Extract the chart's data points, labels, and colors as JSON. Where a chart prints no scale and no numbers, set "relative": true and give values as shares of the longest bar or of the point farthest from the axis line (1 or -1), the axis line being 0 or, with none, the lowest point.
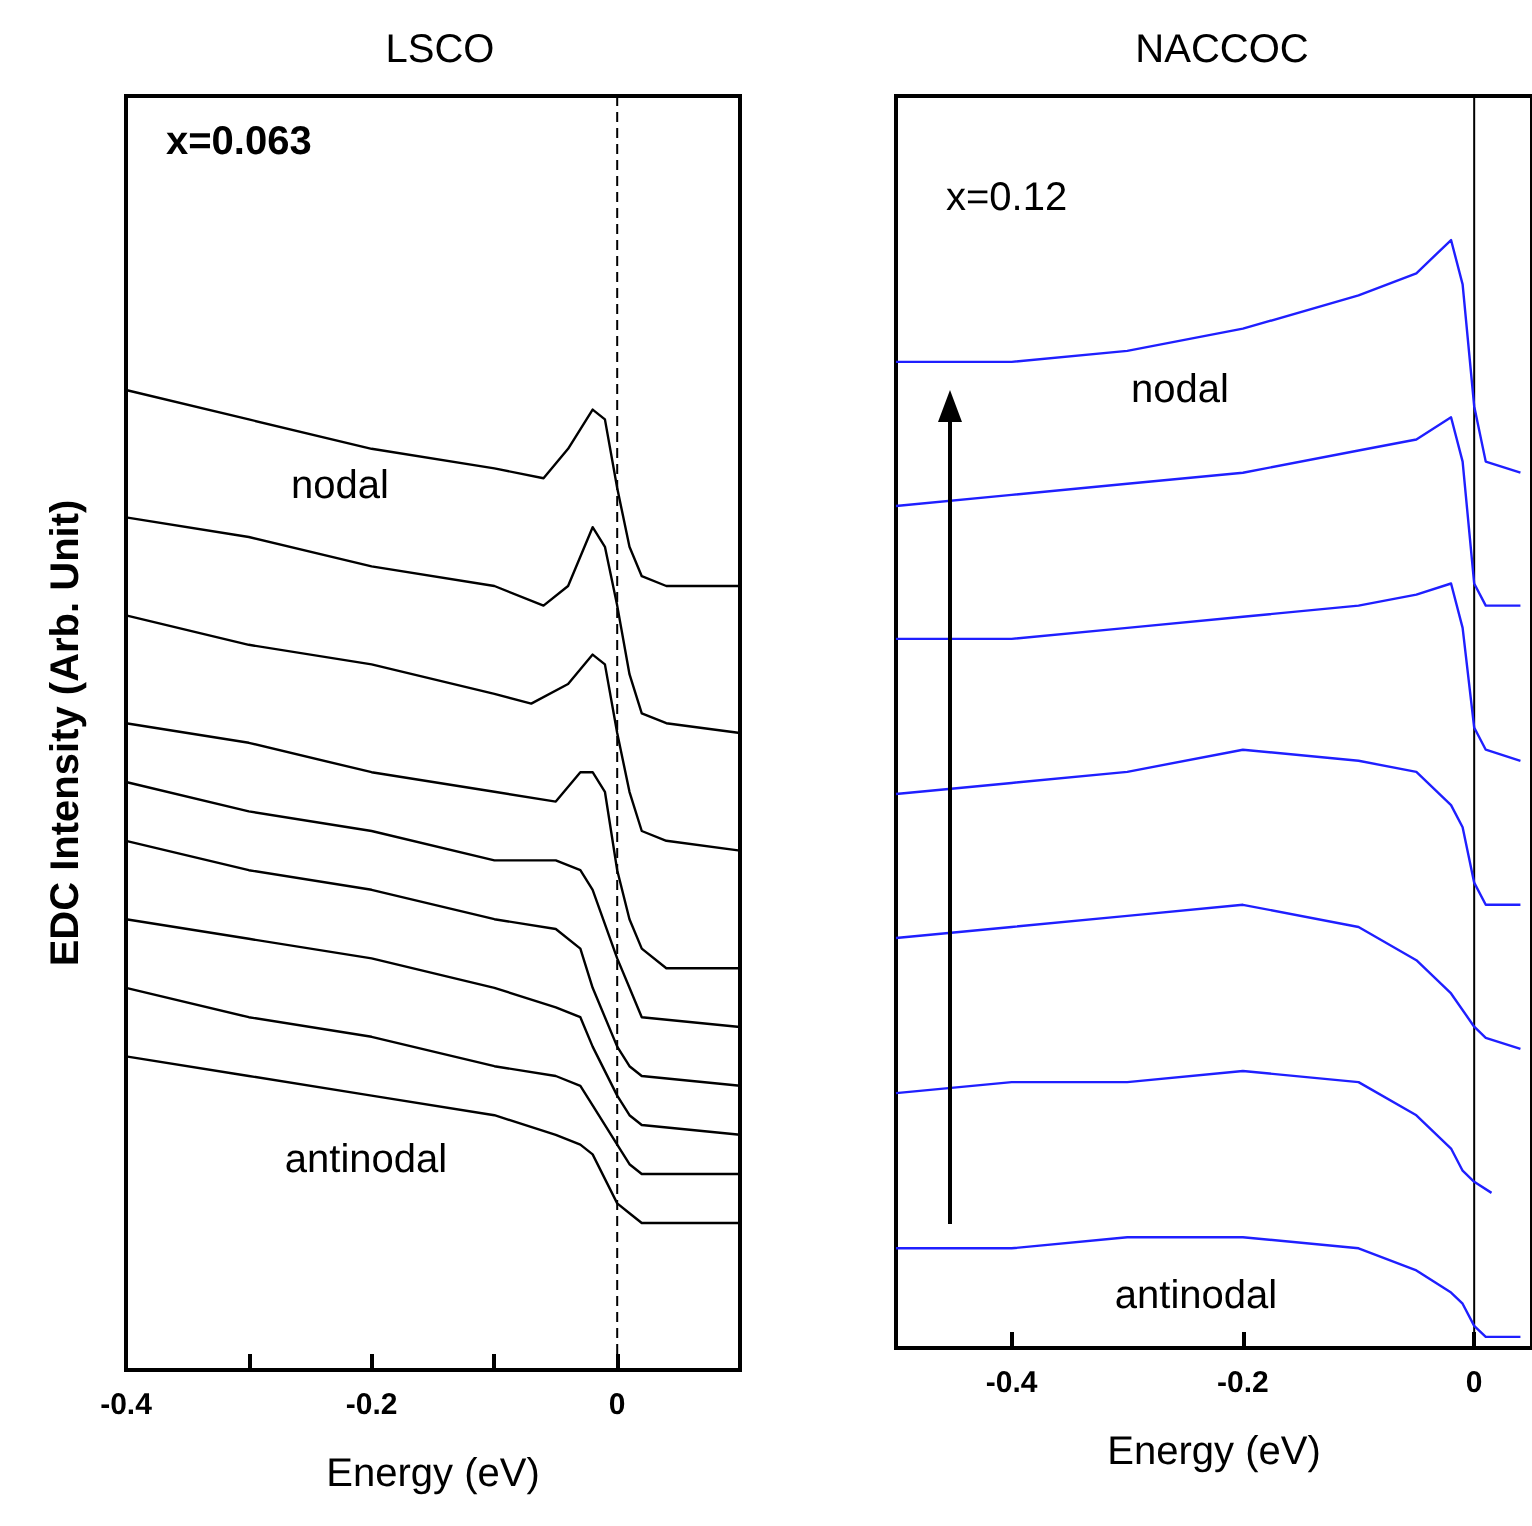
{
  "chart_data": [
    {
      "type": "line",
      "title": "LSCO",
      "xlabel": "Energy (eV)",
      "ylabel": "EDC Intensity (Arb. Unit)",
      "relative": true,
      "tick_labels": "x",
      "marker": "none",
      "line_style": "solid",
      "xlim": [
        -0.4,
        0.1
      ],
      "xticks": [
        -0.4,
        {
          "value": -0.3,
          "label": null
        },
        -0.2,
        {
          "value": -0.1,
          "label": null
        },
        0,
        {
          "value": 0.1,
          "label": null
        }
      ],
      "annotations": [
        "x=0.063",
        "nodal",
        "antinodal"
      ],
      "ref_lines": [
        {
          "axis": "x",
          "value": 0,
          "label": null,
          "color": "#000000",
          "line_style": "dashed"
        }
      ],
      "series": [
        {
          "color": "#000000",
          "x": [
            -0.4,
            -0.3,
            -0.2,
            -0.1,
            -0.06,
            -0.04,
            -0.02,
            -0.01,
            0,
            0.01,
            0.02,
            0.04,
            0.1
          ],
          "values": [
            1.0,
            0.97,
            0.94,
            0.92,
            0.91,
            0.94,
            0.98,
            0.97,
            0.9,
            0.84,
            0.81,
            0.8,
            0.8
          ]
        },
        {
          "color": "#000000",
          "x": [
            -0.4,
            -0.3,
            -0.2,
            -0.1,
            -0.06,
            -0.04,
            -0.02,
            -0.01,
            0,
            0.01,
            0.02,
            0.04,
            0.1
          ],
          "values": [
            0.87,
            0.85,
            0.82,
            0.8,
            0.78,
            0.8,
            0.86,
            0.84,
            0.78,
            0.71,
            0.67,
            0.66,
            0.65
          ]
        },
        {
          "color": "#000000",
          "x": [
            -0.4,
            -0.3,
            -0.2,
            -0.1,
            -0.07,
            -0.04,
            -0.02,
            -0.01,
            0,
            0.01,
            0.02,
            0.04,
            0.1
          ],
          "values": [
            0.77,
            0.74,
            0.72,
            0.69,
            0.68,
            0.7,
            0.73,
            0.72,
            0.65,
            0.59,
            0.55,
            0.54,
            0.53
          ]
        },
        {
          "color": "#000000",
          "x": [
            -0.4,
            -0.3,
            -0.2,
            -0.1,
            -0.05,
            -0.03,
            -0.02,
            -0.01,
            0,
            0.01,
            0.02,
            0.04,
            0.1
          ],
          "values": [
            0.66,
            0.64,
            0.61,
            0.59,
            0.58,
            0.61,
            0.61,
            0.59,
            0.51,
            0.46,
            0.43,
            0.41,
            0.41
          ]
        },
        {
          "color": "#000000",
          "x": [
            -0.4,
            -0.3,
            -0.2,
            -0.1,
            -0.05,
            -0.03,
            -0.02,
            0,
            0.01,
            0.02,
            0.1
          ],
          "values": [
            0.6,
            0.57,
            0.55,
            0.52,
            0.52,
            0.51,
            0.49,
            0.42,
            0.39,
            0.36,
            0.35
          ]
        },
        {
          "color": "#000000",
          "x": [
            -0.4,
            -0.3,
            -0.2,
            -0.1,
            -0.05,
            -0.03,
            -0.02,
            0,
            0.01,
            0.02,
            0.1
          ],
          "values": [
            0.54,
            0.51,
            0.49,
            0.46,
            0.45,
            0.43,
            0.39,
            0.33,
            0.31,
            0.3,
            0.29
          ]
        },
        {
          "color": "#000000",
          "x": [
            -0.4,
            -0.3,
            -0.2,
            -0.1,
            -0.05,
            -0.03,
            -0.02,
            0,
            0.01,
            0.02,
            0.1
          ],
          "values": [
            0.46,
            0.44,
            0.42,
            0.39,
            0.37,
            0.36,
            0.33,
            0.28,
            0.26,
            0.25,
            0.24
          ]
        },
        {
          "color": "#000000",
          "x": [
            -0.4,
            -0.3,
            -0.2,
            -0.1,
            -0.05,
            -0.03,
            -0.02,
            0,
            0.01,
            0.02,
            0.1
          ],
          "values": [
            0.39,
            0.36,
            0.34,
            0.31,
            0.3,
            0.29,
            0.27,
            0.23,
            0.21,
            0.2,
            0.2
          ]
        },
        {
          "color": "#000000",
          "x": [
            -0.4,
            -0.3,
            -0.2,
            -0.1,
            -0.05,
            -0.03,
            -0.02,
            0,
            0.01,
            0.02,
            0.1
          ],
          "values": [
            0.32,
            0.3,
            0.28,
            0.26,
            0.24,
            0.23,
            0.22,
            0.17,
            0.16,
            0.15,
            0.15
          ]
        }
      ]
    },
    {
      "type": "line",
      "title": "NACCOC",
      "xlabel": "Energy (eV)",
      "relative": true,
      "tick_labels": "x",
      "marker": "none",
      "line_style": "solid",
      "xlim": [
        -0.5,
        0.05
      ],
      "xticks": [
        -0.4,
        -0.2,
        0
      ],
      "annotations": [
        "x=0.12",
        "nodal",
        "antinodal"
      ],
      "ref_lines": [
        {
          "axis": "x",
          "value": 0,
          "label": null,
          "color": "#000000",
          "line_style": "solid"
        }
      ],
      "series": [
        {
          "color": "#1f1fff",
          "x": [
            -0.5,
            -0.4,
            -0.3,
            -0.2,
            -0.1,
            -0.05,
            -0.02,
            -0.01,
            0,
            0.01,
            0.04
          ],
          "values": [
            0.89,
            0.89,
            0.9,
            0.92,
            0.95,
            0.97,
            1.0,
            0.96,
            0.85,
            0.8,
            0.79
          ]
        },
        {
          "color": "#1f1fff",
          "x": [
            -0.5,
            -0.4,
            -0.3,
            -0.2,
            -0.1,
            -0.05,
            -0.02,
            -0.01,
            0,
            0.01,
            0.04
          ],
          "values": [
            0.76,
            0.77,
            0.78,
            0.79,
            0.81,
            0.82,
            0.84,
            0.8,
            0.69,
            0.67,
            0.67
          ]
        },
        {
          "color": "#1f1fff",
          "x": [
            -0.5,
            -0.4,
            -0.3,
            -0.2,
            -0.1,
            -0.05,
            -0.02,
            -0.01,
            0,
            0.01,
            0.04
          ],
          "values": [
            0.64,
            0.64,
            0.65,
            0.66,
            0.67,
            0.68,
            0.69,
            0.65,
            0.56,
            0.54,
            0.53
          ]
        },
        {
          "color": "#1f1fff",
          "x": [
            -0.5,
            -0.4,
            -0.3,
            -0.2,
            -0.1,
            -0.05,
            -0.02,
            -0.01,
            0,
            0.01,
            0.04
          ],
          "values": [
            0.5,
            0.51,
            0.52,
            0.54,
            0.53,
            0.52,
            0.49,
            0.47,
            0.42,
            0.4,
            0.4
          ]
        },
        {
          "color": "#1f1fff",
          "x": [
            -0.5,
            -0.4,
            -0.3,
            -0.2,
            -0.1,
            -0.05,
            -0.02,
            0,
            0.01,
            0.04
          ],
          "values": [
            0.37,
            0.38,
            0.39,
            0.4,
            0.38,
            0.35,
            0.32,
            0.29,
            0.28,
            0.27
          ]
        },
        {
          "color": "#1f1fff",
          "x": [
            -0.5,
            -0.4,
            -0.3,
            -0.2,
            -0.1,
            -0.05,
            -0.02,
            -0.01,
            0,
            0.015
          ],
          "values": [
            0.23,
            0.24,
            0.24,
            0.25,
            0.24,
            0.21,
            0.18,
            0.16,
            0.15,
            0.14
          ]
        },
        {
          "color": "#1f1fff",
          "x": [
            -0.5,
            -0.4,
            -0.3,
            -0.2,
            -0.1,
            -0.05,
            -0.02,
            -0.01,
            0,
            0.01,
            0.04
          ],
          "values": [
            0.09,
            0.09,
            0.1,
            0.1,
            0.09,
            0.07,
            0.05,
            0.04,
            0.02,
            0.01,
            0.01
          ]
        }
      ]
    }
  ]
}
